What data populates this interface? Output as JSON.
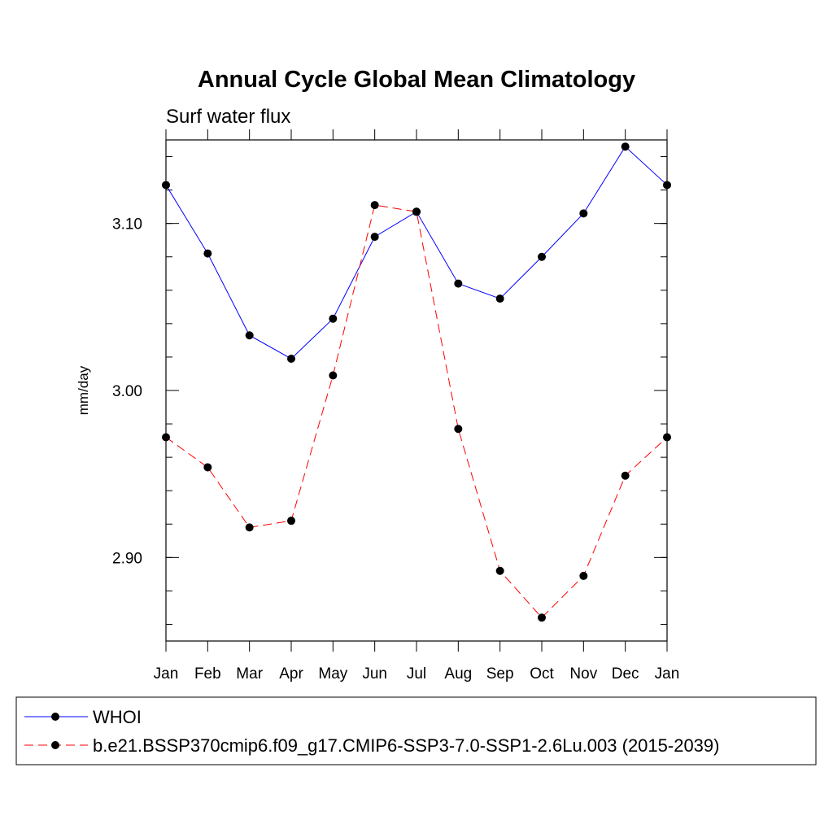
{
  "chart_data": {
    "type": "line",
    "title": "Annual Cycle Global Mean Climatology",
    "subtitle": "Surf water flux",
    "xlabel": "",
    "ylabel": "mm/day",
    "categories": [
      "Jan",
      "Feb",
      "Mar",
      "Apr",
      "May",
      "Jun",
      "Jul",
      "Aug",
      "Sep",
      "Oct",
      "Nov",
      "Dec",
      "Jan"
    ],
    "ylim": [
      2.85,
      3.15
    ],
    "yticks": [
      2.9,
      3.0,
      3.1
    ],
    "ytick_labels": [
      "2.90",
      "3.00",
      "3.10"
    ],
    "series": [
      {
        "name": "WHOI",
        "color": "#0000ff",
        "line_style": "solid",
        "marker": "filled-circle",
        "values": [
          3.123,
          3.082,
          3.033,
          3.019,
          3.043,
          3.092,
          3.107,
          3.064,
          3.055,
          3.08,
          3.106,
          3.146,
          3.123
        ]
      },
      {
        "name": "b.e21.BSSP370cmip6.f09_g17.CMIP6-SSP3-7.0-SSP1-2.6Lu.003 (2015-2039)",
        "color": "#ff0000",
        "line_style": "dashed",
        "marker": "filled-circle",
        "values": [
          2.972,
          2.954,
          2.918,
          2.922,
          3.009,
          3.111,
          3.107,
          2.977,
          2.892,
          2.864,
          2.889,
          2.949,
          2.972
        ]
      }
    ],
    "grid": false,
    "legend_position": "bottom"
  }
}
